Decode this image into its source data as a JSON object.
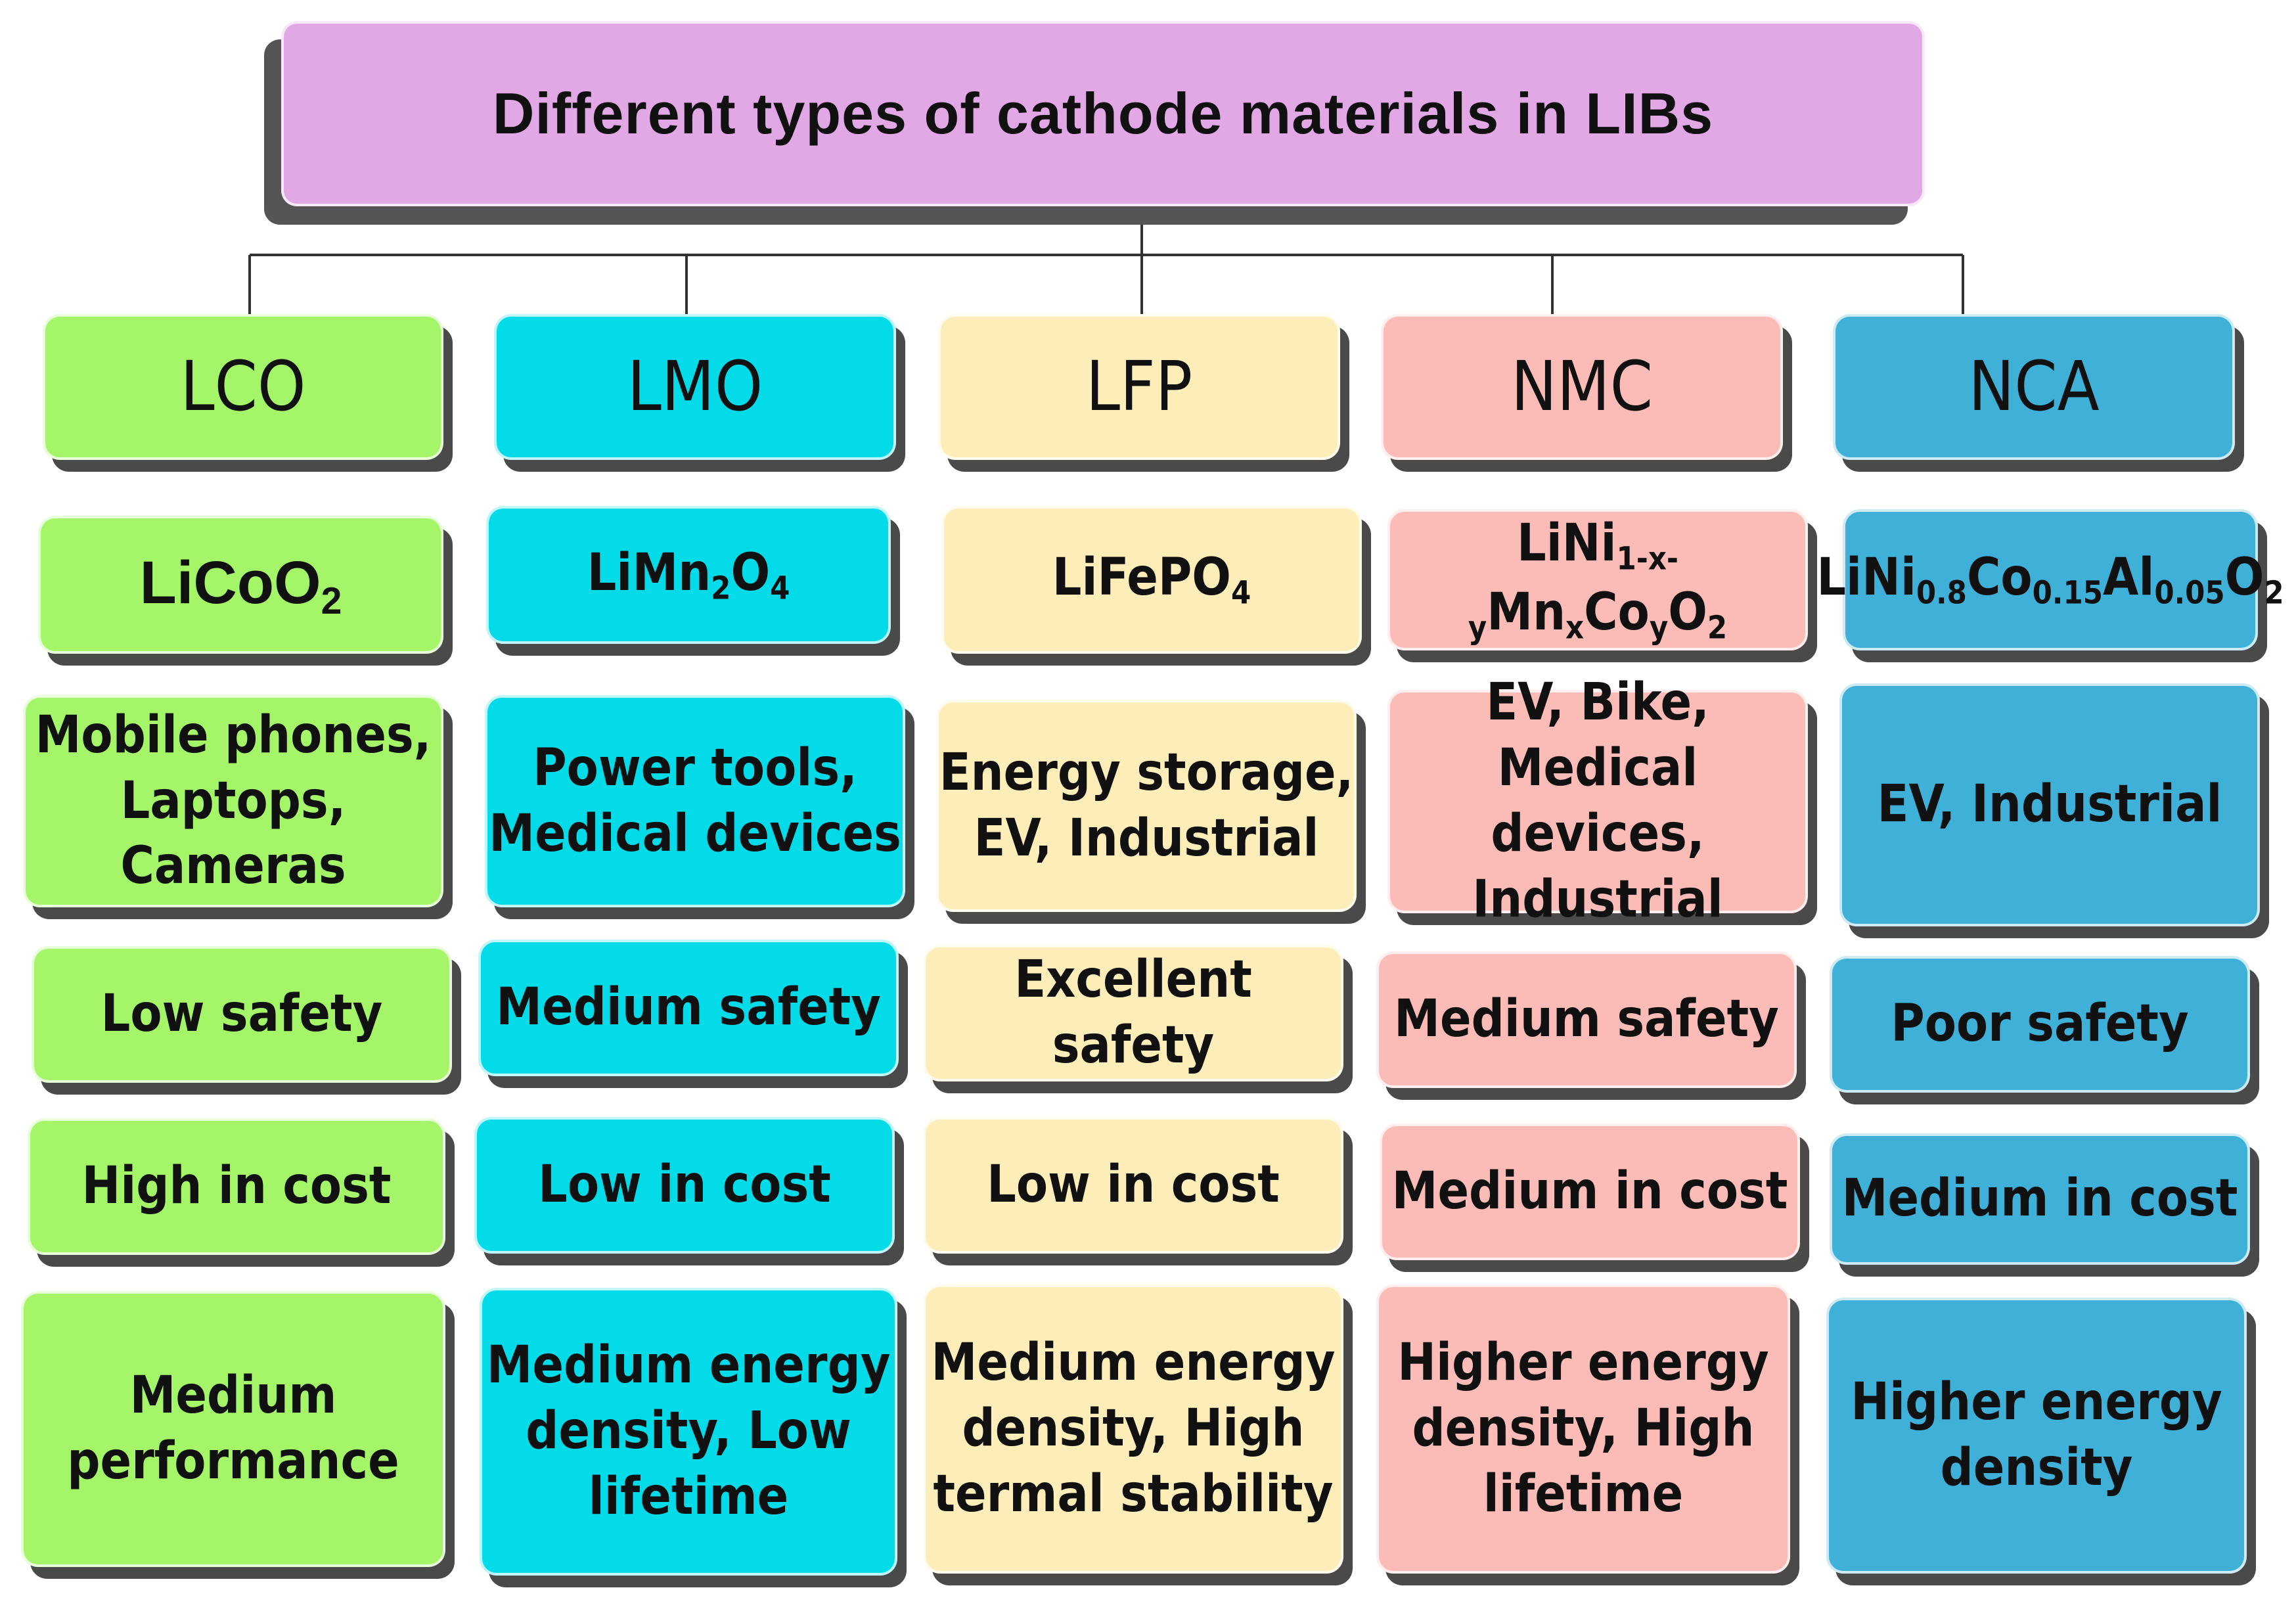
{
  "title": "Different types of cathode materials in LIBs",
  "colors": {
    "title_bg": "#e2a8e6",
    "LCO": "#a4f567",
    "LMO": "#04dbe9",
    "LFP": "#fdeeb9",
    "NMC": "#fbbcb8",
    "NCA": "#3fb0d8",
    "shadow": "#4a4a4a"
  },
  "columns": [
    {
      "name": "LCO",
      "formula": {
        "parts": [
          {
            "t": "LiCoO"
          },
          {
            "s": "2"
          }
        ]
      },
      "applications": [
        "Mobile phones,",
        "Laptops, Cameras"
      ],
      "safety": "Low safety",
      "cost": "High in cost",
      "performance": [
        "Medium",
        "performance"
      ]
    },
    {
      "name": "LMO",
      "formula": {
        "parts": [
          {
            "t": "LiMn"
          },
          {
            "s": "2"
          },
          {
            "t": "O"
          },
          {
            "s": "4"
          }
        ]
      },
      "applications": [
        "Power tools,",
        "Medical devices"
      ],
      "safety": "Medium safety",
      "cost": "Low  in cost",
      "performance": [
        "Medium energy",
        "density, Low",
        "lifetime"
      ]
    },
    {
      "name": "LFP",
      "formula": {
        "parts": [
          {
            "t": "LiFePO"
          },
          {
            "s": "4"
          }
        ]
      },
      "applications": [
        "Energy storage,",
        "EV, Industrial"
      ],
      "safety": "Excellent safety",
      "cost": "Low  in cost",
      "performance": [
        "Medium energy",
        "density, High",
        "termal stability"
      ]
    },
    {
      "name": "NMC",
      "formula": {
        "parts": [
          {
            "t": "LiNi"
          },
          {
            "s": "1-x-y"
          },
          {
            "t": "Mn"
          },
          {
            "s": "x"
          },
          {
            "t": "Co"
          },
          {
            "s": "y"
          },
          {
            "t": "O"
          },
          {
            "s": "2"
          }
        ]
      },
      "applications": [
        "EV, Bike, Medical",
        "devices, Industrial"
      ],
      "safety": "Medium safety",
      "cost": "Medium  in cost",
      "performance": [
        "Higher energy",
        "density, High",
        "lifetime"
      ]
    },
    {
      "name": "NCA",
      "formula": {
        "parts": [
          {
            "t": "LiNi"
          },
          {
            "s": "0.8"
          },
          {
            "t": "Co"
          },
          {
            "s": "0.15"
          },
          {
            "t": "Al"
          },
          {
            "s": "0.05"
          },
          {
            "t": "O"
          },
          {
            "s": "2"
          }
        ]
      },
      "applications": [
        "EV, Industrial"
      ],
      "safety": "Poor safety",
      "cost": "Medium  in cost",
      "performance": [
        "Higher energy",
        "density"
      ]
    }
  ]
}
